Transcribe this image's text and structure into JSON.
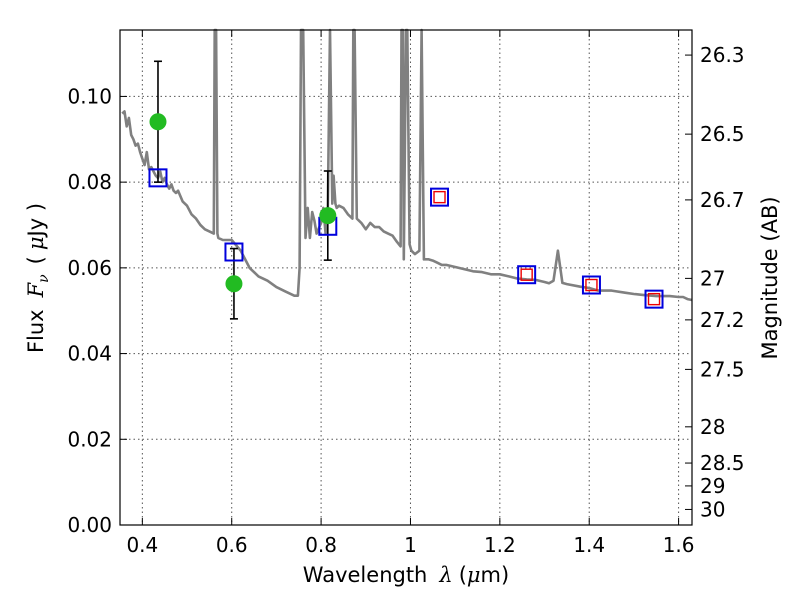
{
  "chart_data": {
    "type": "scatter",
    "xlabel_parts": {
      "prefix": "Wavelength",
      "symbol": "λ",
      "unit_open": "(",
      "unit_mu": "μ",
      "unit_rest": "m)"
    },
    "ylabel_parts": {
      "prefix": "Flux",
      "symbol": "F",
      "sub": "ν",
      "unit_open": "(",
      "unit_mu": "μ",
      "unit_rest": "Jy )"
    },
    "y2label": "Magnitude (AB)",
    "xlim": [
      0.35,
      1.63
    ],
    "ylim": [
      0.0,
      0.1155
    ],
    "grid": true,
    "xticks": [
      0.4,
      0.6,
      0.8,
      1.0,
      1.2,
      1.4,
      1.6
    ],
    "xtick_labels": [
      "0.4",
      "0.6",
      "0.8",
      "1",
      "1.2",
      "1.4",
      "1.6"
    ],
    "yticks": [
      0.0,
      0.02,
      0.04,
      0.06,
      0.08,
      0.1
    ],
    "ytick_labels": [
      "0.00",
      "0.02",
      "0.04",
      "0.06",
      "0.08",
      "0.10"
    ],
    "magnitude_ticks": [
      26.3,
      26.5,
      26.7,
      27,
      27.2,
      27.5,
      28,
      28.5,
      29,
      30
    ],
    "magnitude_tick_labels": [
      "26.3",
      "26.5",
      "26.7",
      "27",
      "27.2",
      "27.5",
      "28",
      "28.5",
      "29",
      "30"
    ],
    "colors": {
      "spectrum": "#808080",
      "observed": "#22bb22",
      "model_box": "#0000dd",
      "upper_box": "#ee0000",
      "errorbar": "#000000",
      "grid": "#555555"
    },
    "series": [
      {
        "name": "template spectrum",
        "kind": "line",
        "x": [
          0.355,
          0.36,
          0.365,
          0.37,
          0.375,
          0.38,
          0.385,
          0.39,
          0.395,
          0.4,
          0.405,
          0.41,
          0.415,
          0.42,
          0.425,
          0.43,
          0.435,
          0.44,
          0.445,
          0.45,
          0.455,
          0.46,
          0.465,
          0.47,
          0.475,
          0.48,
          0.49,
          0.5,
          0.51,
          0.52,
          0.53,
          0.54,
          0.55,
          0.56,
          0.562,
          0.565,
          0.568,
          0.57,
          0.58,
          0.6,
          0.62,
          0.64,
          0.66,
          0.68,
          0.7,
          0.72,
          0.74,
          0.748,
          0.752,
          0.755,
          0.76,
          0.765,
          0.77,
          0.775,
          0.78,
          0.785,
          0.79,
          0.8,
          0.805,
          0.81,
          0.815,
          0.82,
          0.825,
          0.828,
          0.832,
          0.835,
          0.84,
          0.85,
          0.86,
          0.87,
          0.872,
          0.875,
          0.88,
          0.89,
          0.9,
          0.91,
          0.92,
          0.93,
          0.94,
          0.95,
          0.96,
          0.97,
          0.978,
          0.98,
          0.983,
          0.985,
          0.99,
          0.993,
          0.998,
          1.002,
          1.01,
          1.02,
          1.025,
          1.03,
          1.04,
          1.05,
          1.06,
          1.07,
          1.08,
          1.1,
          1.12,
          1.14,
          1.16,
          1.18,
          1.2,
          1.22,
          1.24,
          1.26,
          1.28,
          1.3,
          1.31,
          1.32,
          1.33,
          1.34,
          1.35,
          1.38,
          1.4,
          1.42,
          1.45,
          1.48,
          1.5,
          1.52,
          1.55,
          1.58,
          1.6,
          1.61,
          1.62,
          1.63
        ],
        "y": [
          0.096,
          0.0965,
          0.093,
          0.095,
          0.091,
          0.09,
          0.0885,
          0.089,
          0.087,
          0.0855,
          0.084,
          0.087,
          0.083,
          0.0835,
          0.0825,
          0.0815,
          0.081,
          0.0825,
          0.08,
          0.081,
          0.0795,
          0.0785,
          0.0795,
          0.078,
          0.0775,
          0.078,
          0.0755,
          0.0745,
          0.0725,
          0.0715,
          0.07,
          0.069,
          0.0685,
          0.068,
          0.12,
          0.12,
          0.068,
          0.067,
          0.0665,
          0.0665,
          0.064,
          0.06,
          0.058,
          0.057,
          0.0555,
          0.0545,
          0.0535,
          0.0535,
          0.06,
          0.12,
          0.12,
          0.067,
          0.074,
          0.067,
          0.073,
          0.071,
          0.068,
          0.0705,
          0.074,
          0.068,
          0.074,
          0.12,
          0.075,
          0.0815,
          0.075,
          0.074,
          0.0745,
          0.074,
          0.0725,
          0.0715,
          0.12,
          0.12,
          0.0715,
          0.0705,
          0.069,
          0.0705,
          0.0695,
          0.0695,
          0.0685,
          0.068,
          0.0675,
          0.066,
          0.065,
          0.12,
          0.12,
          0.062,
          0.12,
          0.12,
          0.0655,
          0.064,
          0.0632,
          0.064,
          0.12,
          0.062,
          0.062,
          0.0617,
          0.0612,
          0.0607,
          0.0607,
          0.0602,
          0.0597,
          0.0592,
          0.059,
          0.0585,
          0.0585,
          0.058,
          0.0575,
          0.0573,
          0.0572,
          0.0567,
          0.0564,
          0.057,
          0.064,
          0.0565,
          0.0562,
          0.0556,
          0.0553,
          0.0547,
          0.0547,
          0.0542,
          0.0539,
          0.0537,
          0.0534,
          0.0534,
          0.0532,
          0.0532,
          0.0527,
          0.0525
        ]
      },
      {
        "name": "observed photometry",
        "kind": "points",
        "x": [
          0.435,
          0.605,
          0.815
        ],
        "y": [
          0.0941,
          0.0563,
          0.0722
        ],
        "yerr": [
          0.0141,
          0.0082,
          0.0104
        ]
      },
      {
        "name": "model photometry",
        "kind": "squares",
        "x": [
          0.435,
          0.605,
          0.815,
          1.065,
          1.26,
          1.405,
          1.545
        ],
        "y": [
          0.081,
          0.0637,
          0.0697,
          0.0765,
          0.0584,
          0.056,
          0.0527
        ]
      },
      {
        "name": "upper-limit photometry",
        "kind": "small-squares",
        "x": [
          1.065,
          1.26,
          1.405,
          1.545
        ],
        "y": [
          0.0765,
          0.0584,
          0.056,
          0.0527
        ]
      }
    ]
  }
}
